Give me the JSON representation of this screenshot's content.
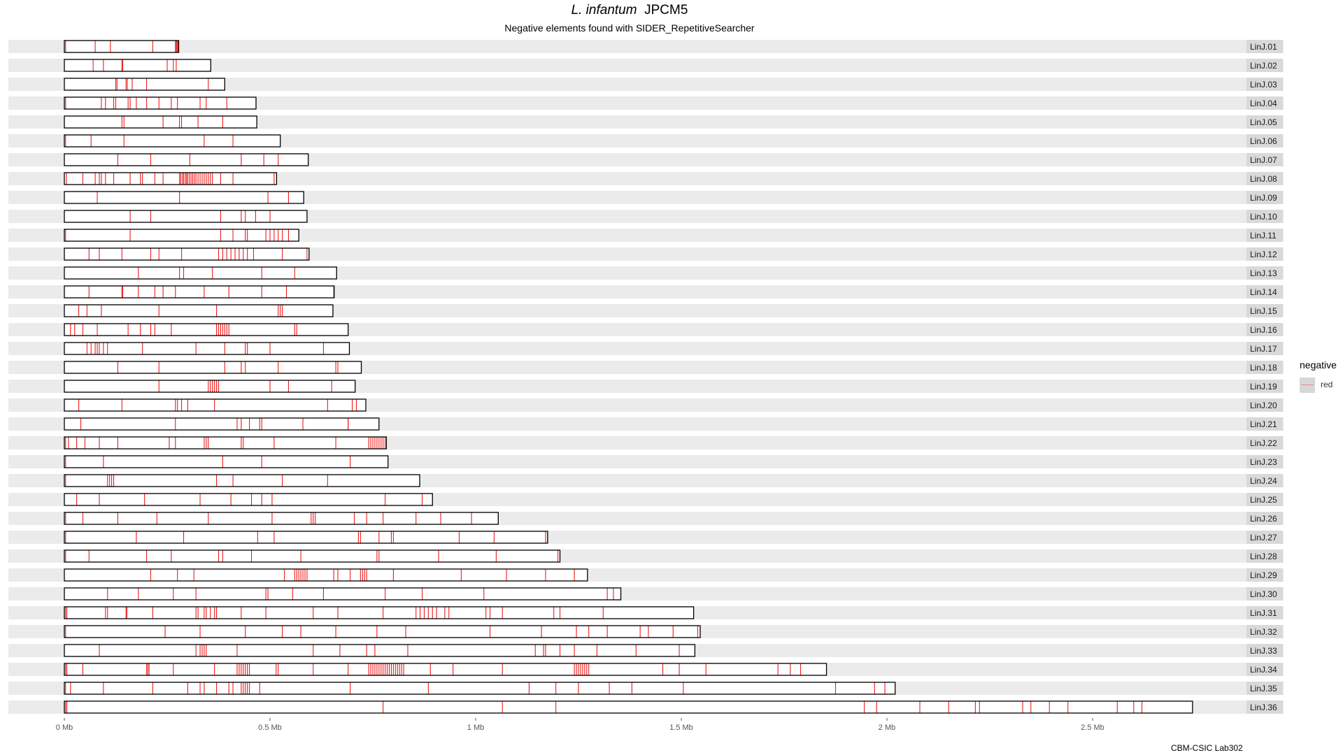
{
  "title_italic": "L. infantum",
  "title_rest": "JPCM5",
  "subtitle": "Negative elements found with SIDER_RepetitiveSearcher",
  "caption": "CBM-CSIC Lab302",
  "legend": {
    "title": "negative",
    "label": "red"
  },
  "colors": {
    "element": "#ee1c1c",
    "strip": "#ebebeb",
    "chrom_outline": "#000000",
    "label_bg": "#d9d9d9"
  },
  "chart_data": {
    "type": "table",
    "x_unit": "Mb",
    "xlim": [
      0,
      2.75
    ],
    "x_ticks": [
      {
        "value": 0,
        "label": "0 Mb"
      },
      {
        "value": 0.5,
        "label": "0.5 Mb"
      },
      {
        "value": 1,
        "label": "1 Mb"
      },
      {
        "value": 1.5,
        "label": "1.5 Mb"
      },
      {
        "value": 2,
        "label": "2 Mb"
      },
      {
        "value": 2.5,
        "label": "2.5 Mb"
      }
    ],
    "chromosomes": [
      {
        "name": "LinJ.01",
        "length": 0.278,
        "elements": [
          0.003,
          0.075,
          0.112,
          0.215,
          0.27,
          0.272,
          0.274,
          0.276
        ]
      },
      {
        "name": "LinJ.02",
        "length": 0.356,
        "elements": [
          0.07,
          0.095,
          0.14,
          0.142,
          0.25,
          0.265,
          0.272
        ]
      },
      {
        "name": "LinJ.03",
        "length": 0.39,
        "elements": [
          0.125,
          0.128,
          0.15,
          0.153,
          0.165,
          0.2,
          0.35
        ]
      },
      {
        "name": "LinJ.04",
        "length": 0.466,
        "elements": [
          0.003,
          0.09,
          0.1,
          0.12,
          0.125,
          0.155,
          0.16,
          0.175,
          0.2,
          0.23,
          0.26,
          0.275,
          0.33,
          0.345,
          0.395
        ]
      },
      {
        "name": "LinJ.05",
        "length": 0.468,
        "elements": [
          0.14,
          0.145,
          0.24,
          0.28,
          0.285,
          0.325,
          0.385
        ]
      },
      {
        "name": "LinJ.06",
        "length": 0.525,
        "elements": [
          0.003,
          0.065,
          0.145,
          0.34,
          0.41
        ]
      },
      {
        "name": "LinJ.07",
        "length": 0.593,
        "elements": [
          0.13,
          0.21,
          0.305,
          0.43,
          0.485,
          0.52
        ]
      },
      {
        "name": "LinJ.08",
        "length": 0.516,
        "elements": [
          0.005,
          0.045,
          0.075,
          0.085,
          0.09,
          0.1,
          0.12,
          0.16,
          0.185,
          0.19,
          0.22,
          0.24,
          0.28,
          0.283,
          0.287,
          0.29,
          0.294,
          0.297,
          0.3,
          0.304,
          0.308,
          0.312,
          0.316,
          0.32,
          0.325,
          0.33,
          0.335,
          0.34,
          0.345,
          0.35,
          0.355,
          0.36,
          0.38,
          0.41,
          0.51
        ]
      },
      {
        "name": "LinJ.09",
        "length": 0.582,
        "elements": [
          0.08,
          0.28,
          0.495,
          0.545
        ]
      },
      {
        "name": "LinJ.10",
        "length": 0.59,
        "elements": [
          0.16,
          0.21,
          0.38,
          0.43,
          0.44,
          0.465,
          0.5
        ]
      },
      {
        "name": "LinJ.11",
        "length": 0.57,
        "elements": [
          0.003,
          0.16,
          0.38,
          0.41,
          0.44,
          0.445,
          0.49,
          0.5,
          0.51,
          0.52,
          0.53,
          0.545
        ]
      },
      {
        "name": "LinJ.12",
        "length": 0.595,
        "elements": [
          0.06,
          0.085,
          0.14,
          0.21,
          0.23,
          0.285,
          0.375,
          0.385,
          0.395,
          0.405,
          0.415,
          0.425,
          0.435,
          0.445,
          0.46,
          0.53,
          0.59
        ]
      },
      {
        "name": "LinJ.13",
        "length": 0.662,
        "elements": [
          0.18,
          0.28,
          0.29,
          0.36,
          0.48,
          0.56
        ]
      },
      {
        "name": "LinJ.14",
        "length": 0.656,
        "elements": [
          0.06,
          0.14,
          0.142,
          0.18,
          0.22,
          0.24,
          0.27,
          0.34,
          0.4,
          0.48,
          0.54,
          0.655
        ]
      },
      {
        "name": "LinJ.15",
        "length": 0.653,
        "elements": [
          0.035,
          0.055,
          0.09,
          0.23,
          0.37,
          0.52,
          0.525,
          0.53
        ]
      },
      {
        "name": "LinJ.16",
        "length": 0.69,
        "elements": [
          0.015,
          0.025,
          0.045,
          0.08,
          0.155,
          0.185,
          0.21,
          0.22,
          0.26,
          0.37,
          0.375,
          0.38,
          0.385,
          0.39,
          0.395,
          0.4,
          0.56,
          0.565
        ]
      },
      {
        "name": "LinJ.17",
        "length": 0.693,
        "elements": [
          0.055,
          0.065,
          0.075,
          0.08,
          0.085,
          0.095,
          0.105,
          0.19,
          0.32,
          0.39,
          0.44,
          0.445,
          0.5,
          0.63
        ]
      },
      {
        "name": "LinJ.18",
        "length": 0.722,
        "elements": [
          0.13,
          0.23,
          0.39,
          0.43,
          0.44,
          0.52,
          0.66,
          0.665
        ]
      },
      {
        "name": "LinJ.19",
        "length": 0.707,
        "elements": [
          0.23,
          0.35,
          0.355,
          0.36,
          0.365,
          0.37,
          0.375,
          0.5,
          0.545,
          0.65
        ]
      },
      {
        "name": "LinJ.20",
        "length": 0.733,
        "elements": [
          0.035,
          0.14,
          0.27,
          0.275,
          0.285,
          0.3,
          0.365,
          0.64,
          0.7,
          0.71
        ]
      },
      {
        "name": "LinJ.21",
        "length": 0.765,
        "elements": [
          0.04,
          0.27,
          0.42,
          0.43,
          0.45,
          0.475,
          0.48,
          0.58,
          0.69,
          0.69
        ]
      },
      {
        "name": "LinJ.22",
        "length": 0.783,
        "elements": [
          0.003,
          0.01,
          0.03,
          0.05,
          0.085,
          0.13,
          0.255,
          0.27,
          0.34,
          0.345,
          0.35,
          0.43,
          0.435,
          0.51,
          0.66,
          0.74,
          0.745,
          0.75,
          0.755,
          0.76,
          0.765,
          0.77,
          0.775,
          0.78
        ]
      },
      {
        "name": "LinJ.23",
        "length": 0.787,
        "elements": [
          0.003,
          0.095,
          0.385,
          0.48,
          0.695
        ]
      },
      {
        "name": "LinJ.24",
        "length": 0.864,
        "elements": [
          0.003,
          0.105,
          0.11,
          0.115,
          0.12,
          0.37,
          0.41,
          0.53,
          0.64
        ]
      },
      {
        "name": "LinJ.25",
        "length": 0.895,
        "elements": [
          0.03,
          0.085,
          0.195,
          0.33,
          0.405,
          0.455,
          0.48,
          0.505,
          0.78,
          0.87
        ]
      },
      {
        "name": "LinJ.26",
        "length": 1.055,
        "elements": [
          0.003,
          0.045,
          0.13,
          0.225,
          0.35,
          0.505,
          0.6,
          0.605,
          0.61,
          0.705,
          0.735,
          0.775,
          0.855,
          0.915,
          0.99
        ]
      },
      {
        "name": "LinJ.27",
        "length": 1.175,
        "elements": [
          0.003,
          0.175,
          0.29,
          0.47,
          0.51,
          0.715,
          0.72,
          0.765,
          0.795,
          0.8,
          0.96,
          1.045,
          1.17,
          1.175
        ]
      },
      {
        "name": "LinJ.28",
        "length": 1.205,
        "elements": [
          0.003,
          0.06,
          0.2,
          0.26,
          0.375,
          0.385,
          0.455,
          0.575,
          0.76,
          0.765,
          0.91,
          1.05,
          1.2
        ]
      },
      {
        "name": "LinJ.29",
        "length": 1.272,
        "elements": [
          0.21,
          0.275,
          0.315,
          0.535,
          0.56,
          0.565,
          0.57,
          0.575,
          0.58,
          0.585,
          0.59,
          0.655,
          0.665,
          0.695,
          0.72,
          0.725,
          0.73,
          0.735,
          0.8,
          0.965,
          1.075,
          1.17,
          1.24
        ]
      },
      {
        "name": "LinJ.30",
        "length": 1.353,
        "elements": [
          0.105,
          0.18,
          0.265,
          0.32,
          0.49,
          0.495,
          0.555,
          0.63,
          0.78,
          0.87,
          1.02,
          1.32,
          1.335
        ]
      },
      {
        "name": "LinJ.31",
        "length": 1.53,
        "elements": [
          0.003,
          0.006,
          0.1,
          0.105,
          0.15,
          0.152,
          0.215,
          0.32,
          0.325,
          0.34,
          0.345,
          0.355,
          0.365,
          0.37,
          0.43,
          0.49,
          0.605,
          0.665,
          0.775,
          0.855,
          0.865,
          0.875,
          0.885,
          0.895,
          0.905,
          0.925,
          0.935,
          1.025,
          1.035,
          1.065,
          1.19,
          1.205,
          1.31
        ]
      },
      {
        "name": "LinJ.32",
        "length": 1.546,
        "elements": [
          0.003,
          0.245,
          0.33,
          0.44,
          0.53,
          0.575,
          0.66,
          0.76,
          0.83,
          1.035,
          1.16,
          1.245,
          1.275,
          1.32,
          1.4,
          1.42,
          1.48,
          1.54
        ]
      },
      {
        "name": "LinJ.33",
        "length": 1.533,
        "elements": [
          0.085,
          0.32,
          0.33,
          0.335,
          0.34,
          0.345,
          0.42,
          0.605,
          0.67,
          0.735,
          0.755,
          0.835,
          1.145,
          1.165,
          1.17,
          1.205,
          1.24,
          1.295,
          1.39,
          1.495
        ]
      },
      {
        "name": "LinJ.34",
        "length": 1.853,
        "elements": [
          0.003,
          0.006,
          0.045,
          0.2,
          0.203,
          0.206,
          0.265,
          0.365,
          0.42,
          0.425,
          0.43,
          0.435,
          0.44,
          0.445,
          0.45,
          0.515,
          0.52,
          0.605,
          0.69,
          0.74,
          0.745,
          0.75,
          0.755,
          0.76,
          0.765,
          0.77,
          0.775,
          0.78,
          0.785,
          0.79,
          0.795,
          0.8,
          0.805,
          0.81,
          0.815,
          0.82,
          0.825,
          0.89,
          0.945,
          1.065,
          1.24,
          1.245,
          1.25,
          1.255,
          1.26,
          1.265,
          1.27,
          1.275,
          1.455,
          1.495,
          1.56,
          1.735,
          1.765,
          1.79
        ]
      },
      {
        "name": "LinJ.35",
        "length": 2.02,
        "elements": [
          0.003,
          0.015,
          0.095,
          0.215,
          0.3,
          0.33,
          0.34,
          0.37,
          0.4,
          0.41,
          0.43,
          0.435,
          0.44,
          0.445,
          0.45,
          0.475,
          0.695,
          0.885,
          1.13,
          1.195,
          1.25,
          1.325,
          1.38,
          1.505,
          1.875,
          1.97,
          1.995
        ]
      },
      {
        "name": "LinJ.36",
        "length": 2.743,
        "elements": [
          0.003,
          0.006,
          0.775,
          1.065,
          1.195,
          1.945,
          1.975,
          2.08,
          2.15,
          2.215,
          2.225,
          2.33,
          2.35,
          2.395,
          2.44,
          2.56,
          2.6,
          2.62
        ]
      }
    ]
  }
}
